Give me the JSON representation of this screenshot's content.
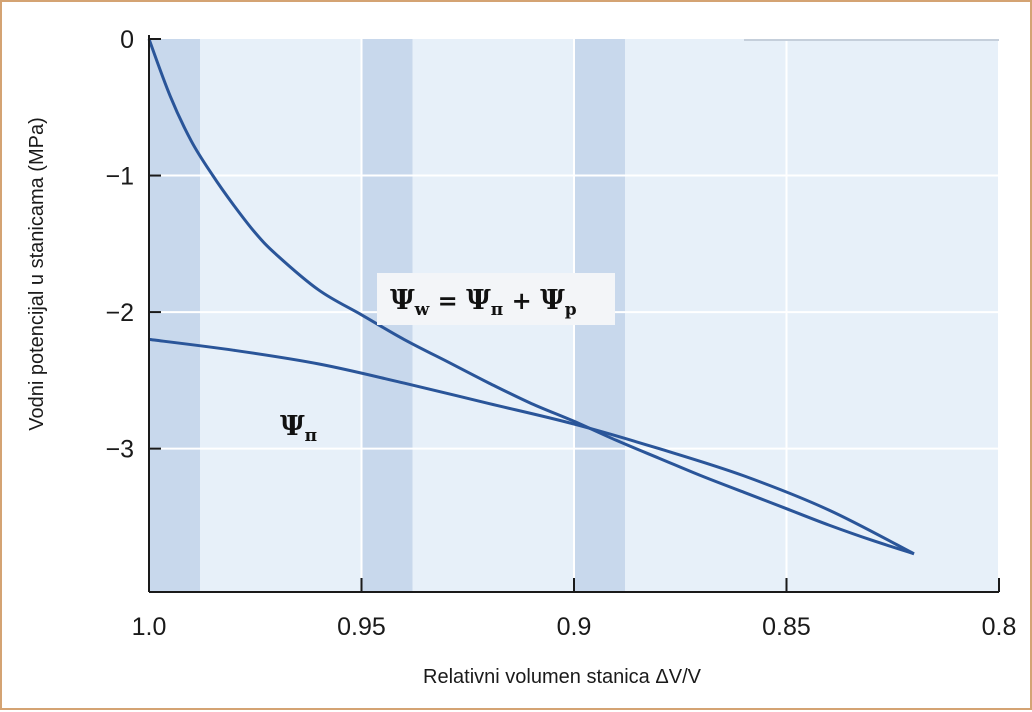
{
  "chart_data": {
    "type": "line",
    "xlabel": "Relativni volumen stanica ΔV/V",
    "ylabel": "Vodni potencijal u stanicama (MPa)",
    "xlim": [
      1.0,
      0.8
    ],
    "ylim": [
      -4.05,
      0
    ],
    "x_reversed": true,
    "grid": true,
    "x_ticks": [
      {
        "value": 1.0,
        "label": "1.0"
      },
      {
        "value": 0.95,
        "label": "0.95"
      },
      {
        "value": 0.9,
        "label": "0.9"
      },
      {
        "value": 0.85,
        "label": "0.85"
      },
      {
        "value": 0.8,
        "label": "0.8"
      }
    ],
    "y_ticks": [
      {
        "value": 0,
        "label": "0"
      },
      {
        "value": -1,
        "label": "−1"
      },
      {
        "value": -2,
        "label": "−2"
      },
      {
        "value": -3,
        "label": "−3"
      }
    ],
    "shaded_bands": [
      {
        "x_from": 1.0,
        "x_to": 0.988
      },
      {
        "x_from": 0.95,
        "x_to": 0.938
      },
      {
        "x_from": 0.9,
        "x_to": 0.888
      }
    ],
    "series": [
      {
        "name": "Ψw = Ψπ + Ψp",
        "x": [
          1.0,
          0.995,
          0.99,
          0.985,
          0.98,
          0.975,
          0.97,
          0.96,
          0.95,
          0.94,
          0.93,
          0.92,
          0.91,
          0.9,
          0.89,
          0.88,
          0.87,
          0.86,
          0.85,
          0.84,
          0.83,
          0.82
        ],
        "y": [
          0.0,
          -0.42,
          -0.75,
          -1.0,
          -1.22,
          -1.42,
          -1.58,
          -1.84,
          -2.02,
          -2.2,
          -2.36,
          -2.52,
          -2.67,
          -2.8,
          -2.94,
          -3.07,
          -3.2,
          -3.32,
          -3.44,
          -3.56,
          -3.67,
          -3.77
        ]
      },
      {
        "name": "Ψπ",
        "x": [
          1.0,
          0.98,
          0.96,
          0.94,
          0.92,
          0.9,
          0.88,
          0.86,
          0.84,
          0.82
        ],
        "y": [
          -2.2,
          -2.28,
          -2.38,
          -2.52,
          -2.67,
          -2.82,
          -3.0,
          -3.2,
          -3.45,
          -3.77
        ]
      }
    ],
    "annotations": {
      "psi_w_label": {
        "sym": "Ψ",
        "sub_w": "w",
        "eq": " = ",
        "plus": " + ",
        "sub_pi": "π",
        "sub_p": "p"
      },
      "psi_pi_label": {
        "sym": "Ψ",
        "sub_pi": "π"
      }
    },
    "colors": {
      "line": "#2a5599",
      "plot_bg": "#e7f0f9",
      "band": "#c8d8ec",
      "grid": "#ffffff",
      "axis": "#1a1a1a",
      "frame": "#d4a373"
    }
  }
}
